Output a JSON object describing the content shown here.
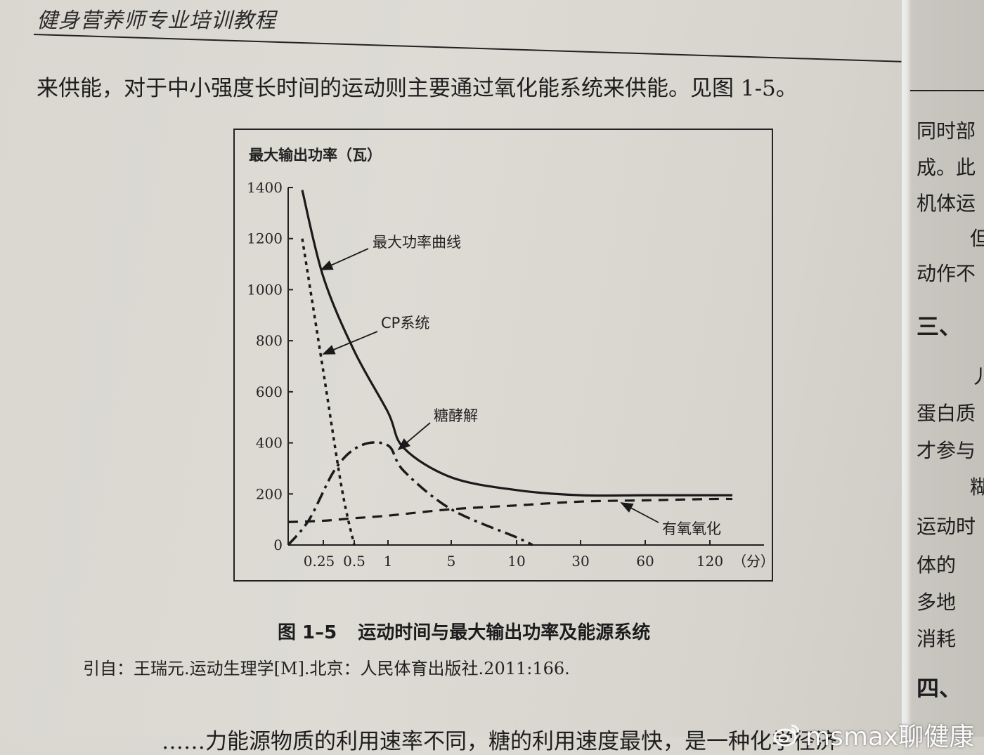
{
  "page": {
    "running_head": "健身营养师专业培训教程",
    "body_text": "来供能，对于中小强度长时间的运动则主要通过氧化能系统来供能。见图 1-5。",
    "bottom_text_partial": "……力能源物质的利用速率不同，糖的利用速度最快，是一种化学径济",
    "right_column_lines": [
      {
        "text": "同时部",
        "top": 165
      },
      {
        "text": "成。此",
        "top": 217
      },
      {
        "text": "机体运",
        "top": 268
      },
      {
        "text": "但",
        "top": 318,
        "indent": true
      },
      {
        "text": "动作不",
        "top": 368
      },
      {
        "text": "三、",
        "top": 440,
        "heading": true
      },
      {
        "text": "丿",
        "top": 515,
        "indent": true
      },
      {
        "text": "蛋白质",
        "top": 567
      },
      {
        "text": "才参与",
        "top": 620
      },
      {
        "text": "糊",
        "top": 672,
        "indent": true
      },
      {
        "text": "运动时",
        "top": 728
      },
      {
        "text": "体的",
        "top": 783
      },
      {
        "text": "多地",
        "top": 836
      },
      {
        "text": "消耗",
        "top": 888
      },
      {
        "text": "四、",
        "top": 955,
        "heading": true
      }
    ],
    "watermark": "msmax聊健康"
  },
  "figure": {
    "caption_number": "图 1–5",
    "caption_title": "运动时间与最大输出功率及能源系统",
    "source": "引自：王瑞元.运动生理学[M].北京：人民体育出版社.2011:166."
  },
  "chart_data": {
    "type": "line",
    "title": "运动时间与最大输出功率及能源系统",
    "ylabel": "最大输出功率（瓦）",
    "xlabel": "（分）",
    "ylim": [
      0,
      1400
    ],
    "yticks": [
      0,
      200,
      400,
      600,
      800,
      1000,
      1200,
      1400
    ],
    "xtick_labels": [
      "0.25",
      "0.5",
      "1",
      "5",
      "10",
      "30",
      "60",
      "120"
    ],
    "x_scale": "non-linear (compressed log-like)",
    "grid": false,
    "legend": "inline annotations with arrows",
    "series": [
      {
        "name": "最大功率曲线",
        "style": "solid",
        "x": [
          0.1,
          0.25,
          0.5,
          1,
          2,
          5,
          10,
          30,
          60,
          120,
          180
        ],
        "y": [
          1390,
          1050,
          760,
          520,
          380,
          265,
          215,
          195,
          195,
          195,
          195
        ]
      },
      {
        "name": "CP系统",
        "style": "dotted",
        "x": [
          0.1,
          0.25,
          0.4,
          0.5
        ],
        "y": [
          1200,
          680,
          220,
          0
        ]
      },
      {
        "name": "糖酵解",
        "style": "dash-dot",
        "x": [
          0,
          0.15,
          0.35,
          0.6,
          1,
          2,
          5,
          10,
          15
        ],
        "y": [
          0,
          100,
          300,
          390,
          390,
          290,
          140,
          30,
          0
        ]
      },
      {
        "name": "有氧氧化",
        "style": "dashed",
        "x": [
          0,
          0.25,
          0.5,
          1,
          5,
          10,
          30,
          60,
          120,
          180
        ],
        "y": [
          90,
          95,
          105,
          115,
          140,
          155,
          170,
          175,
          180,
          180
        ]
      }
    ],
    "annotations": [
      "最大功率曲线",
      "CP系统",
      "糖酵解",
      "有氧氧化"
    ]
  }
}
